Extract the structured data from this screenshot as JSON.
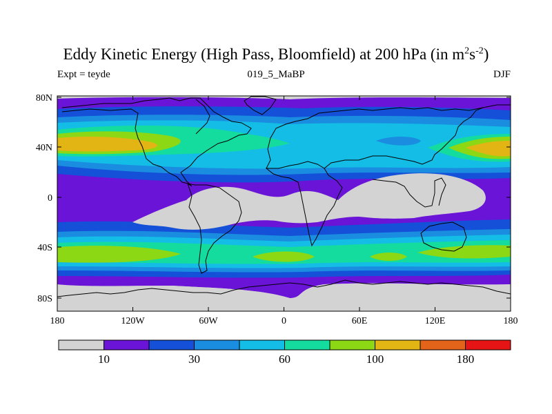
{
  "title": {
    "main": "Eddy Kinetic Energy (High Pass, Bloomfield) at 200 hPa (in m",
    "sup1": "2",
    "mid": "s",
    "sup2": "-2",
    "end": ")"
  },
  "subtitle_left": "Expt = teyde",
  "subtitle_center": "019_5_MaBP",
  "subtitle_right": "DJF",
  "map": {
    "y_ticks": [
      "80N",
      "40N",
      "0",
      "40S",
      "80S"
    ],
    "x_ticks": [
      "180",
      "120W",
      "60W",
      "0",
      "60E",
      "120E",
      "180"
    ]
  },
  "colorbar": {
    "colors": [
      "#d3d3d3",
      "#6a14d8",
      "#1450d8",
      "#1a8de0",
      "#14bde6",
      "#14dc9e",
      "#8cd814",
      "#e2b414",
      "#e2641a",
      "#e61414"
    ],
    "labels": [
      "10",
      "30",
      "60",
      "100",
      "180"
    ],
    "label_after_box": [
      1,
      3,
      5,
      7,
      9
    ]
  },
  "field_colors": {
    "grey": "#d3d3d3",
    "violet": "#6a14d8",
    "blue": "#1450d8",
    "medblue": "#1a8de0",
    "cyan": "#14bde6",
    "green": "#14dc9e",
    "lime": "#8cd814",
    "gold": "#e2b414"
  }
}
